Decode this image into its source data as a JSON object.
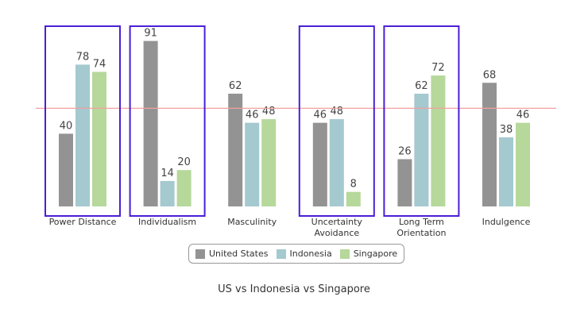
{
  "chart_data": {
    "type": "bar",
    "title": "US vs Indonesia vs Singapore",
    "categories": [
      "Power Distance",
      "Individualism",
      "Masculinity",
      "Uncertainty Avoidance",
      "Long Term Orientation",
      "Indulgence"
    ],
    "series": [
      {
        "name": "United States",
        "color": "#939393",
        "values": [
          40,
          91,
          62,
          46,
          26,
          68
        ]
      },
      {
        "name": "Indonesia",
        "color": "#a4c9cf",
        "values": [
          78,
          14,
          46,
          48,
          62,
          38
        ]
      },
      {
        "name": "Singapore",
        "color": "#b6d89b",
        "values": [
          74,
          20,
          48,
          8,
          72,
          46
        ]
      }
    ],
    "reference_line": {
      "value": 54,
      "color": "#f4a0a0"
    },
    "highlight": {
      "categories": [
        0,
        1,
        3,
        4
      ],
      "color": "#4b1fd6"
    }
  }
}
